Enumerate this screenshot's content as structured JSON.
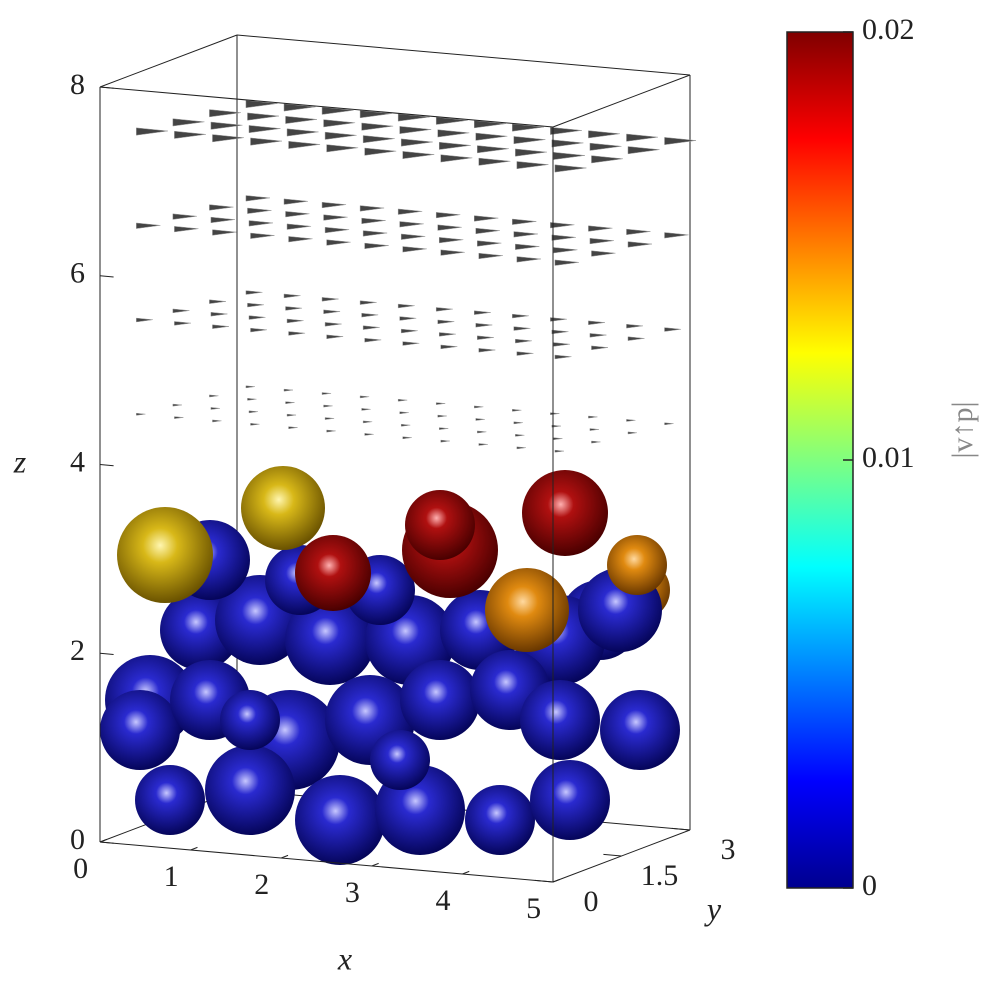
{
  "chart_data": {
    "type": "scatter3d",
    "xlabel": "x",
    "ylabel": "y",
    "zlabel": "z",
    "xlim": [
      0,
      5
    ],
    "xticks": [
      0,
      1,
      2,
      3,
      4,
      5
    ],
    "ylim": [
      0,
      3
    ],
    "yticks": [
      0,
      1.5,
      3
    ],
    "zlim": [
      0,
      8
    ],
    "zticks": [
      0,
      2,
      4,
      6,
      8
    ],
    "colorbar": {
      "label": "|v↑p|",
      "lim": [
        0,
        0.02
      ],
      "ticks": [
        0,
        0.01,
        0.02
      ],
      "colormap": "jet"
    }
  }
}
